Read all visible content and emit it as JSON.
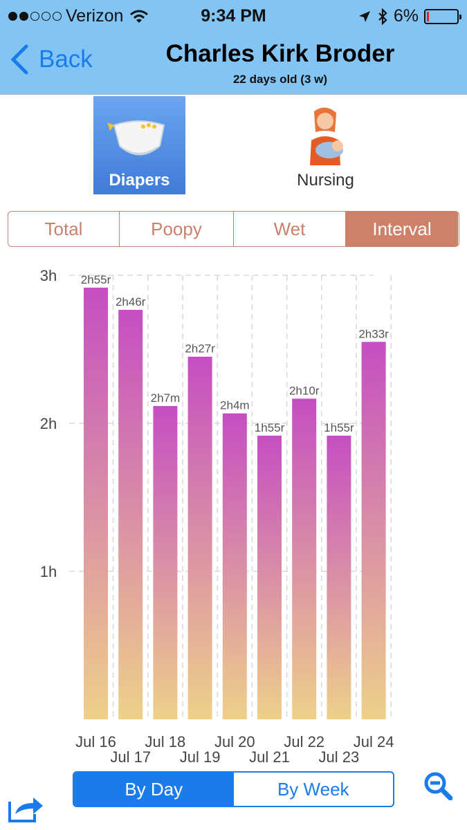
{
  "status_bar": {
    "carrier": "Verizon",
    "time": "9:34 PM",
    "battery": "6%",
    "battery_level": 0.06,
    "signal_bars_filled": 2,
    "signal_bars_total": 5,
    "icons": [
      "wifi-icon",
      "location-arrow-icon",
      "bluetooth-icon",
      "battery-icon"
    ]
  },
  "nav": {
    "back_label": "Back",
    "title": "Charles Kirk Broder",
    "subtitle": "22 days old (3 w)"
  },
  "categories": [
    {
      "label": "Diapers",
      "icon": "diaper-icon",
      "selected": true
    },
    {
      "label": "Nursing",
      "icon": "nursing-mother-icon",
      "selected": false
    }
  ],
  "tabs": [
    {
      "label": "Total",
      "selected": false
    },
    {
      "label": "Poopy",
      "selected": false
    },
    {
      "label": "Wet",
      "selected": false
    },
    {
      "label": "Interval",
      "selected": true
    }
  ],
  "chart_data": {
    "type": "bar",
    "y_ticks": [
      "3h",
      "2h",
      "1h"
    ],
    "ylim_hours": [
      0,
      3
    ],
    "categories": [
      "Jul 16",
      "Jul 17",
      "Jul 18",
      "Jul 19",
      "Jul 20",
      "Jul 21",
      "Jul 22",
      "Jul 23",
      "Jul 24"
    ],
    "values_hours": [
      2.9167,
      2.7667,
      2.1167,
      2.45,
      2.0667,
      1.9167,
      2.1667,
      1.9167,
      2.55
    ],
    "data_labels": [
      "2h55r",
      "2h46r",
      "2h7m",
      "2h27r",
      "2h4m",
      "1h55r",
      "2h10r",
      "1h55r",
      "2h33r"
    ],
    "grid": true,
    "colors": {
      "bar_top": "#c54ec2",
      "bar_bottom": "#eed08a",
      "grid": "#d8d8d8"
    }
  },
  "range_toggle": [
    {
      "label": "By Day",
      "selected": true
    },
    {
      "label": "By Week",
      "selected": false
    }
  ],
  "toolbar": {
    "share_icon": "share-icon",
    "zoom_icon": "zoom-out-icon"
  },
  "colors": {
    "nav_bg": "#82c4f3",
    "accent": "#1a7bea",
    "tab_accent": "#cf8068"
  }
}
